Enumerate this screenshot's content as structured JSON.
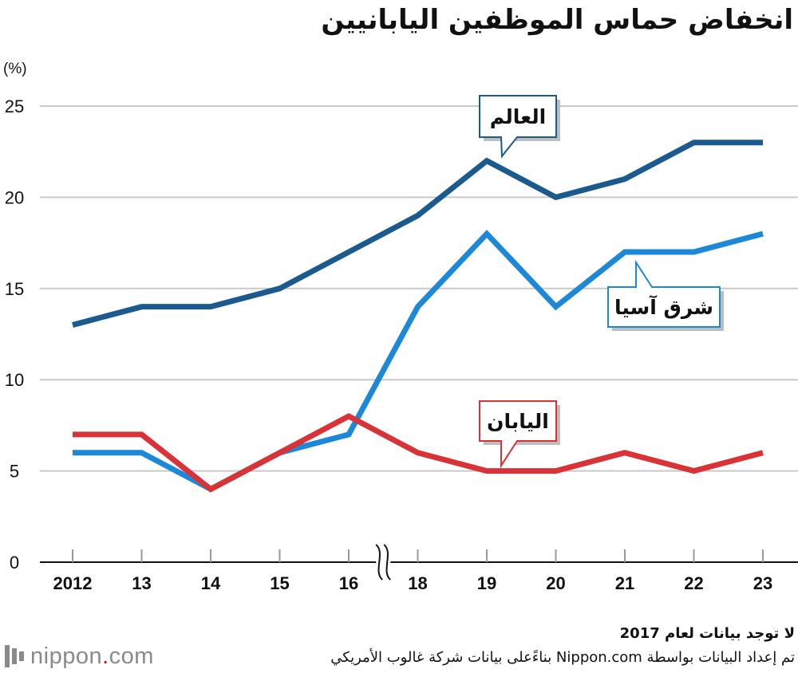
{
  "page": {
    "title": "انخفاض حماس الموظفين اليابانيين",
    "footnote_no_data": "لا توجد بيانات لعام 2017",
    "footnote_source": "تم إعداد البيانات بواسطة Nippon.com بناءًعلى بيانات شركة غالوب الأمريكي",
    "logo_text_main": "nippon",
    "logo_text_dot": ".",
    "logo_text_tld": "com",
    "logo_icon": "nippon-logo-icon"
  },
  "chart_data": {
    "type": "line",
    "title": "انخفاض حماس الموظفين اليابانيين",
    "ylabel": "(%)",
    "xlabel": "",
    "categories": [
      "2012",
      "13",
      "14",
      "15",
      "16",
      "18",
      "19",
      "20",
      "21",
      "22",
      "23"
    ],
    "ylim": [
      0,
      25
    ],
    "yticks": [
      0,
      5,
      10,
      15,
      20,
      25
    ],
    "grid": true,
    "axis_break_between": [
      "16",
      "18"
    ],
    "series": [
      {
        "name": "العالم",
        "color": "#1a5a8e",
        "values": [
          13,
          14,
          14,
          15,
          17,
          19,
          22,
          20,
          21,
          23,
          23
        ]
      },
      {
        "name": "شرق آسيا",
        "color": "#1e88d8",
        "values": [
          6,
          6,
          4,
          6,
          7,
          14,
          18,
          14,
          17,
          17,
          18
        ]
      },
      {
        "name": "اليابان",
        "color": "#d93338",
        "values": [
          7,
          7,
          4,
          6,
          8,
          6,
          5,
          5,
          6,
          5,
          6
        ]
      }
    ]
  }
}
